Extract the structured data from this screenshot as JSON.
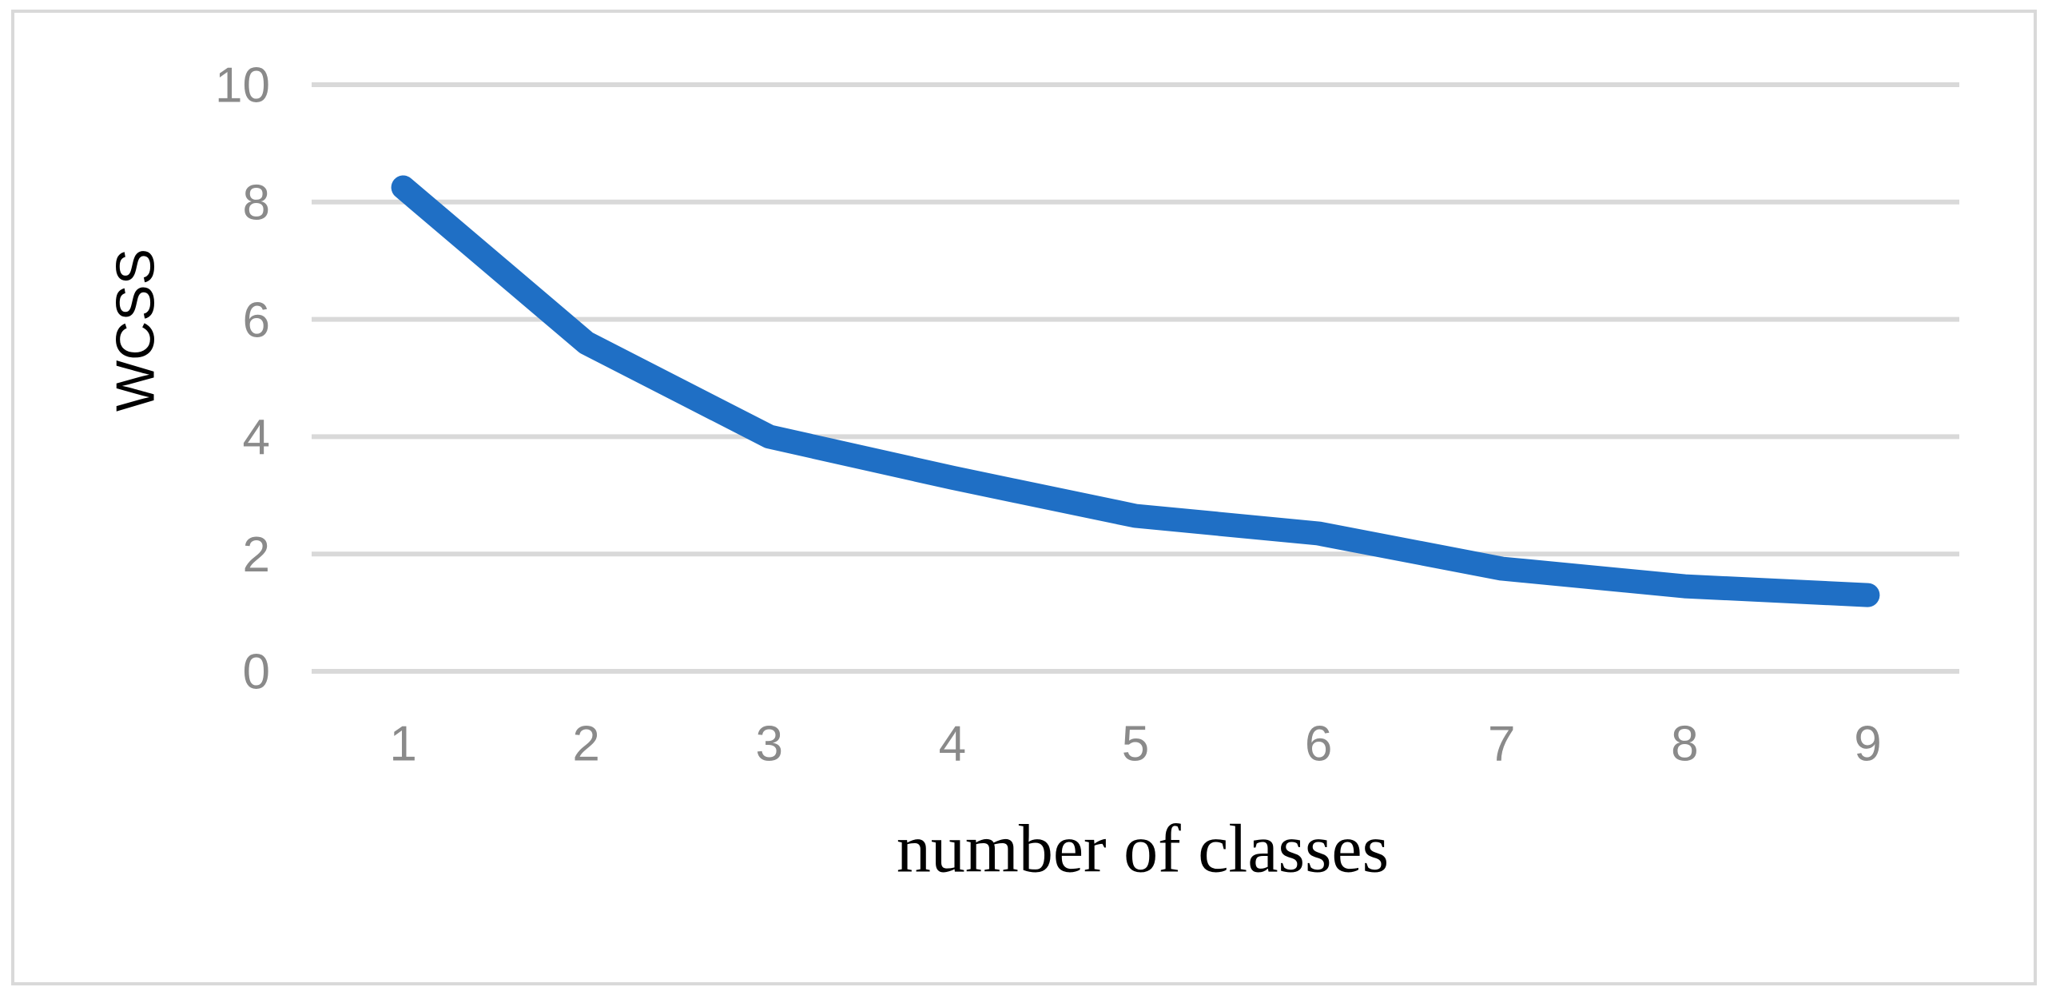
{
  "figure": {
    "y_axis_title": "WCSS",
    "x_axis_title": "number of classes"
  },
  "chart_data": {
    "type": "line",
    "title": "",
    "xlabel": "number of classes",
    "ylabel": "WCSS",
    "x": [
      1,
      2,
      3,
      4,
      5,
      6,
      7,
      8,
      9
    ],
    "series": [
      {
        "name": "WCSS",
        "values": [
          8.25,
          5.6,
          4.0,
          3.3,
          2.65,
          2.35,
          1.75,
          1.45,
          1.3
        ]
      }
    ],
    "ylim": [
      0,
      10
    ],
    "yticks": [
      0,
      2,
      4,
      6,
      8,
      10
    ],
    "xticks": [
      1,
      2,
      3,
      4,
      5,
      6,
      7,
      8,
      9
    ],
    "grid": "horizontal-only",
    "legend": "none",
    "colors": {
      "line": "#1F6FC5",
      "gridline": "#D9D9D9",
      "frame": "#D9D9D9",
      "tick_label": "#8A8A8A",
      "axis_title": "#000000",
      "background": "#FFFFFF"
    }
  }
}
